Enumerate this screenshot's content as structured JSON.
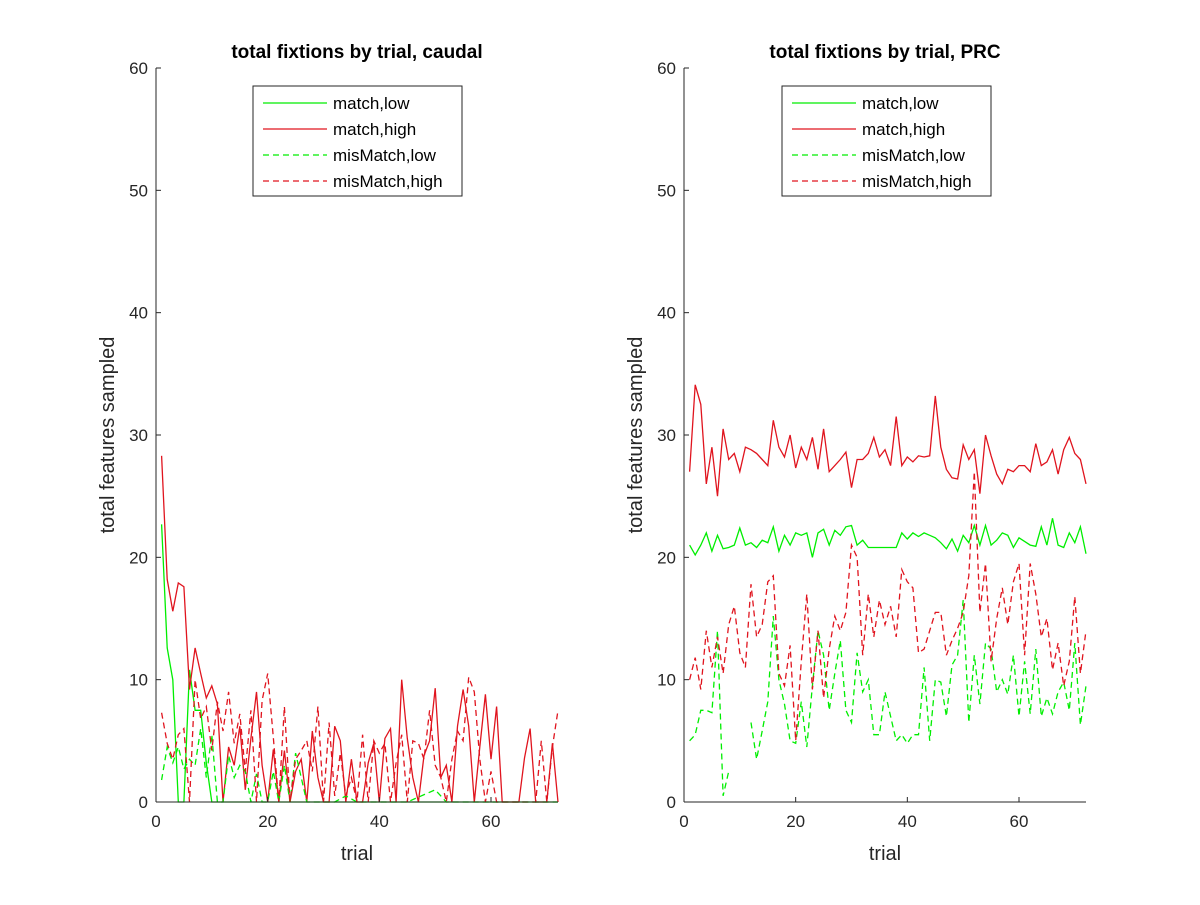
{
  "figure": {
    "background": "#ffffff"
  },
  "styles": {
    "colors": {
      "low": "#00ee00",
      "high": "#e0141e",
      "axis": "#262626",
      "text": "#262626"
    }
  },
  "chart_data": [
    {
      "type": "line",
      "title": "total fixtions by trial, caudal",
      "xlabel": "trial",
      "ylabel": "total features sampled",
      "xlim": [
        0,
        72
      ],
      "ylim": [
        0,
        60
      ],
      "xticks": [
        0,
        20,
        40,
        60
      ],
      "yticks": [
        0,
        10,
        20,
        30,
        40,
        50,
        60
      ],
      "grid": false,
      "legend": "top-center",
      "series": [
        {
          "name": "match,low",
          "color": "#00ee00",
          "dash": "solid",
          "x": [
            1,
            2,
            3,
            4,
            5,
            6,
            7,
            8,
            9,
            10,
            11,
            12,
            14,
            16,
            18,
            20,
            22,
            24,
            26,
            28,
            30,
            35,
            40,
            45,
            50,
            55,
            60,
            65,
            70,
            72
          ],
          "y": [
            22.7,
            12.6,
            10.0,
            0,
            0,
            10.8,
            7.5,
            7.5,
            3.2,
            0,
            0,
            0,
            0,
            0,
            0,
            0,
            0,
            0,
            0,
            0,
            0,
            0,
            0,
            0,
            0,
            0,
            0,
            0,
            0,
            0
          ]
        },
        {
          "name": "match,high",
          "color": "#e0141e",
          "dash": "solid",
          "x": [
            1,
            2,
            3,
            4,
            5,
            6,
            7,
            8,
            9,
            10,
            11,
            12,
            13,
            14,
            15,
            16,
            17,
            18,
            19,
            20,
            21,
            22,
            23,
            24,
            25,
            26,
            27,
            28,
            29,
            30,
            31,
            32,
            33,
            34,
            35,
            36,
            37,
            38,
            39,
            40,
            41,
            42,
            43,
            44,
            45,
            46,
            47,
            48,
            49,
            50,
            51,
            52,
            53,
            54,
            55,
            56,
            57,
            58,
            59,
            60,
            61,
            62,
            63,
            64,
            65,
            66,
            67,
            68,
            69,
            70,
            71,
            72
          ],
          "y": [
            28.3,
            18.2,
            15.6,
            17.9,
            17.6,
            9.2,
            12.6,
            10.5,
            8.5,
            9.5,
            8.0,
            0,
            4.5,
            3.0,
            6.2,
            1.0,
            5.2,
            9.0,
            3.0,
            0,
            4.3,
            0,
            4.2,
            0,
            2.5,
            3.5,
            0,
            5.8,
            2.0,
            0,
            0,
            6.2,
            5.0,
            0,
            3.5,
            0,
            0,
            3.2,
            4.8,
            0,
            5.2,
            6.0,
            0,
            10.0,
            5.2,
            2.0,
            0,
            3.8,
            5.0,
            9.3,
            2.0,
            3.0,
            0,
            6.2,
            9.2,
            6.2,
            0,
            4.5,
            8.8,
            3.5,
            7.8,
            0,
            0,
            0,
            0,
            3.6,
            6.0,
            0,
            0,
            0,
            4.8,
            0
          ]
        },
        {
          "name": "misMatch,low",
          "color": "#00ee00",
          "dash": "dashed",
          "x": [
            1,
            2,
            3,
            4,
            5,
            6,
            7,
            8,
            9,
            10,
            11,
            12,
            13,
            14,
            15,
            16,
            17,
            18,
            19,
            20,
            21,
            22,
            23,
            24,
            25,
            26,
            27,
            28,
            29,
            30,
            32,
            34,
            36,
            38,
            40,
            45,
            50,
            52,
            55,
            57,
            60,
            65,
            70,
            72
          ],
          "y": [
            1.8,
            4.5,
            3.2,
            4.5,
            2.7,
            3.5,
            3.0,
            6.0,
            2.0,
            5.5,
            0,
            0,
            3.8,
            2.0,
            3.0,
            2.5,
            0,
            2.3,
            0,
            0,
            2.5,
            0,
            3.0,
            0,
            4.0,
            2.0,
            0,
            0,
            0,
            0,
            0,
            0.5,
            0,
            0,
            0,
            0,
            1.0,
            0,
            0,
            0,
            0,
            0,
            0,
            0
          ]
        },
        {
          "name": "misMatch,high",
          "color": "#e0141e",
          "dash": "dashed",
          "x": [
            1,
            2,
            3,
            4,
            5,
            6,
            7,
            8,
            9,
            10,
            11,
            12,
            13,
            14,
            15,
            16,
            17,
            18,
            19,
            20,
            21,
            22,
            23,
            24,
            25,
            26,
            27,
            28,
            29,
            30,
            31,
            32,
            33,
            34,
            35,
            36,
            37,
            38,
            39,
            40,
            41,
            42,
            43,
            44,
            45,
            46,
            47,
            48,
            49,
            50,
            51,
            52,
            53,
            54,
            55,
            56,
            57,
            58,
            59,
            60,
            61,
            62,
            63,
            64,
            65,
            66,
            67,
            68,
            69,
            70,
            71,
            72
          ],
          "y": [
            7.3,
            4.8,
            3.5,
            5.5,
            6.0,
            0,
            10.0,
            6.8,
            7.8,
            4.2,
            8.2,
            5.8,
            9.0,
            4.8,
            7.2,
            2.5,
            7.5,
            0,
            8.3,
            10.5,
            5.3,
            0,
            7.8,
            0,
            3.5,
            4.2,
            5.0,
            2.5,
            7.8,
            0,
            6.5,
            0.5,
            4.0,
            0.5,
            2.0,
            0,
            5.5,
            0,
            5.0,
            4.0,
            4.8,
            0,
            3.2,
            5.5,
            0,
            5.0,
            4.8,
            3.5,
            7.5,
            3.0,
            2.0,
            0,
            3.5,
            5.8,
            5.0,
            10.2,
            9.0,
            3.5,
            0,
            2.5,
            0,
            0,
            0,
            0,
            0,
            0,
            0,
            0,
            5.0,
            0,
            4.5,
            7.5
          ]
        }
      ]
    },
    {
      "type": "line",
      "title": "total fixtions by trial, PRC",
      "xlabel": "trial",
      "ylabel": "total features sampled",
      "xlim": [
        0,
        72
      ],
      "ylim": [
        0,
        60
      ],
      "xticks": [
        0,
        20,
        40,
        60
      ],
      "yticks": [
        0,
        10,
        20,
        30,
        40,
        50,
        60
      ],
      "grid": false,
      "legend": "top-center",
      "series": [
        {
          "name": "match,low",
          "color": "#00ee00",
          "dash": "solid",
          "x": [
            1,
            2,
            3,
            4,
            5,
            6,
            7,
            8,
            9,
            10,
            11,
            12,
            13,
            14,
            15,
            16,
            17,
            18,
            19,
            20,
            21,
            22,
            23,
            24,
            25,
            26,
            27,
            28,
            29,
            30,
            31,
            32,
            33,
            34,
            35,
            36,
            37,
            38,
            39,
            40,
            41,
            42,
            43,
            44,
            45,
            46,
            47,
            48,
            49,
            50,
            51,
            52,
            53,
            54,
            55,
            56,
            57,
            58,
            59,
            60,
            61,
            62,
            63,
            64,
            65,
            66,
            67,
            68,
            69,
            70,
            71,
            72
          ],
          "y": [
            21.0,
            20.2,
            21.0,
            22.0,
            20.5,
            21.8,
            20.7,
            20.8,
            21.0,
            22.4,
            21.0,
            21.2,
            20.8,
            21.4,
            21.2,
            22.5,
            20.5,
            21.8,
            21.0,
            22.0,
            21.8,
            22.0,
            20.0,
            22.0,
            22.3,
            21.0,
            22.2,
            21.8,
            22.5,
            22.6,
            21.0,
            21.4,
            20.8,
            20.8,
            20.8,
            20.8,
            20.8,
            20.8,
            22.0,
            21.5,
            22.0,
            21.7,
            22.0,
            21.8,
            21.6,
            21.2,
            20.7,
            21.5,
            20.5,
            21.8,
            21.2,
            22.6,
            21.0,
            22.6,
            21.0,
            21.4,
            22.0,
            21.8,
            20.8,
            21.6,
            21.3,
            21.0,
            20.9,
            22.5,
            21.0,
            23.2,
            21.0,
            20.8,
            22.0,
            21.2,
            22.5,
            20.3
          ]
        },
        {
          "name": "match,high",
          "color": "#e0141e",
          "dash": "solid",
          "x": [
            1,
            2,
            3,
            4,
            5,
            6,
            7,
            8,
            9,
            10,
            11,
            12,
            13,
            14,
            15,
            16,
            17,
            18,
            19,
            20,
            21,
            22,
            23,
            24,
            25,
            26,
            27,
            28,
            29,
            30,
            31,
            32,
            33,
            34,
            35,
            36,
            37,
            38,
            39,
            40,
            41,
            42,
            43,
            44,
            45,
            46,
            47,
            48,
            49,
            50,
            51,
            52,
            53,
            54,
            55,
            56,
            57,
            58,
            59,
            60,
            61,
            62,
            63,
            64,
            65,
            66,
            67,
            68,
            69,
            70,
            71,
            72
          ],
          "y": [
            27.0,
            34.1,
            32.5,
            26.0,
            29.0,
            25.0,
            30.5,
            28.0,
            28.5,
            27.0,
            29.0,
            28.8,
            28.5,
            28.0,
            27.5,
            31.2,
            29.0,
            28.2,
            30.0,
            27.3,
            29.0,
            28.0,
            29.8,
            27.2,
            30.5,
            27.0,
            27.5,
            28.0,
            28.6,
            25.7,
            28.0,
            28.0,
            28.5,
            29.8,
            28.2,
            28.8,
            27.5,
            31.5,
            27.5,
            28.2,
            27.8,
            28.3,
            28.2,
            28.3,
            33.2,
            29.0,
            27.2,
            26.5,
            26.4,
            29.2,
            28.0,
            28.8,
            25.2,
            30.0,
            28.3,
            26.8,
            26.0,
            27.2,
            27.0,
            27.5,
            27.5,
            27.0,
            29.3,
            27.5,
            27.8,
            28.8,
            26.8,
            28.8,
            29.8,
            28.5,
            28.0,
            26.0
          ]
        },
        {
          "name": "misMatch,low",
          "color": "#00ee00",
          "dash": "dashed",
          "x": [
            1,
            2,
            3,
            4,
            5,
            6,
            7,
            8,
            10,
            12,
            13,
            14,
            15,
            16,
            17,
            18,
            19,
            20,
            21,
            22,
            23,
            24,
            25,
            26,
            27,
            28,
            29,
            30,
            31,
            32,
            33,
            34,
            35,
            36,
            37,
            38,
            39,
            40,
            41,
            42,
            43,
            44,
            45,
            46,
            47,
            48,
            49,
            50,
            51,
            52,
            53,
            54,
            55,
            56,
            57,
            58,
            59,
            60,
            61,
            62,
            63,
            64,
            65,
            66,
            67,
            68,
            69,
            70,
            71,
            72
          ],
          "y": [
            5.0,
            5.5,
            7.5,
            7.5,
            7.3,
            14.0,
            0.5,
            2.5,
            null,
            6.5,
            3.5,
            5.8,
            8.2,
            15.2,
            10.0,
            8.0,
            5.0,
            4.8,
            8.2,
            4.5,
            9.5,
            14.0,
            12.0,
            7.5,
            10.5,
            13.2,
            7.5,
            6.5,
            12.2,
            9.0,
            10.0,
            5.5,
            5.5,
            9.0,
            7.0,
            5.0,
            5.5,
            4.8,
            5.5,
            5.5,
            11.0,
            5.0,
            10.0,
            9.8,
            7.0,
            11.2,
            12.0,
            16.5,
            6.5,
            12.0,
            8.0,
            13.0,
            12.5,
            9.0,
            10.0,
            8.8,
            12.0,
            7.0,
            11.5,
            7.2,
            12.5,
            7.0,
            8.5,
            7.2,
            9.0,
            9.8,
            7.5,
            13.0,
            6.3,
            9.5
          ]
        },
        {
          "name": "misMatch,high",
          "color": "#e0141e",
          "dash": "dashed",
          "x": [
            1,
            2,
            3,
            4,
            5,
            6,
            7,
            8,
            9,
            10,
            11,
            12,
            13,
            14,
            15,
            16,
            17,
            18,
            19,
            20,
            21,
            22,
            23,
            24,
            25,
            26,
            27,
            28,
            29,
            30,
            31,
            32,
            33,
            34,
            35,
            36,
            37,
            38,
            39,
            40,
            41,
            42,
            43,
            44,
            45,
            46,
            47,
            48,
            49,
            50,
            51,
            52,
            53,
            54,
            55,
            56,
            57,
            58,
            59,
            60,
            61,
            62,
            63,
            64,
            65,
            66,
            67,
            68,
            69,
            70,
            71,
            72
          ],
          "y": [
            10.0,
            11.8,
            9.2,
            14.0,
            11.0,
            13.5,
            10.5,
            14.5,
            16.0,
            12.2,
            11.0,
            17.8,
            13.5,
            14.5,
            18.0,
            18.5,
            10.5,
            9.5,
            12.8,
            5.0,
            11.5,
            17.0,
            9.2,
            14.0,
            8.5,
            12.5,
            15.2,
            14.0,
            15.5,
            21.0,
            20.0,
            12.0,
            17.0,
            13.5,
            16.5,
            14.5,
            16.0,
            13.5,
            19.0,
            18.0,
            17.5,
            12.2,
            12.5,
            14.0,
            15.5,
            15.5,
            12.0,
            13.2,
            14.2,
            15.5,
            18.5,
            27.0,
            15.5,
            19.5,
            11.5,
            15.0,
            17.5,
            14.5,
            18.0,
            19.5,
            12.0,
            19.5,
            17.0,
            13.5,
            15.0,
            10.8,
            13.0,
            9.5,
            11.5,
            16.8,
            10.5,
            14.0
          ]
        }
      ]
    }
  ]
}
